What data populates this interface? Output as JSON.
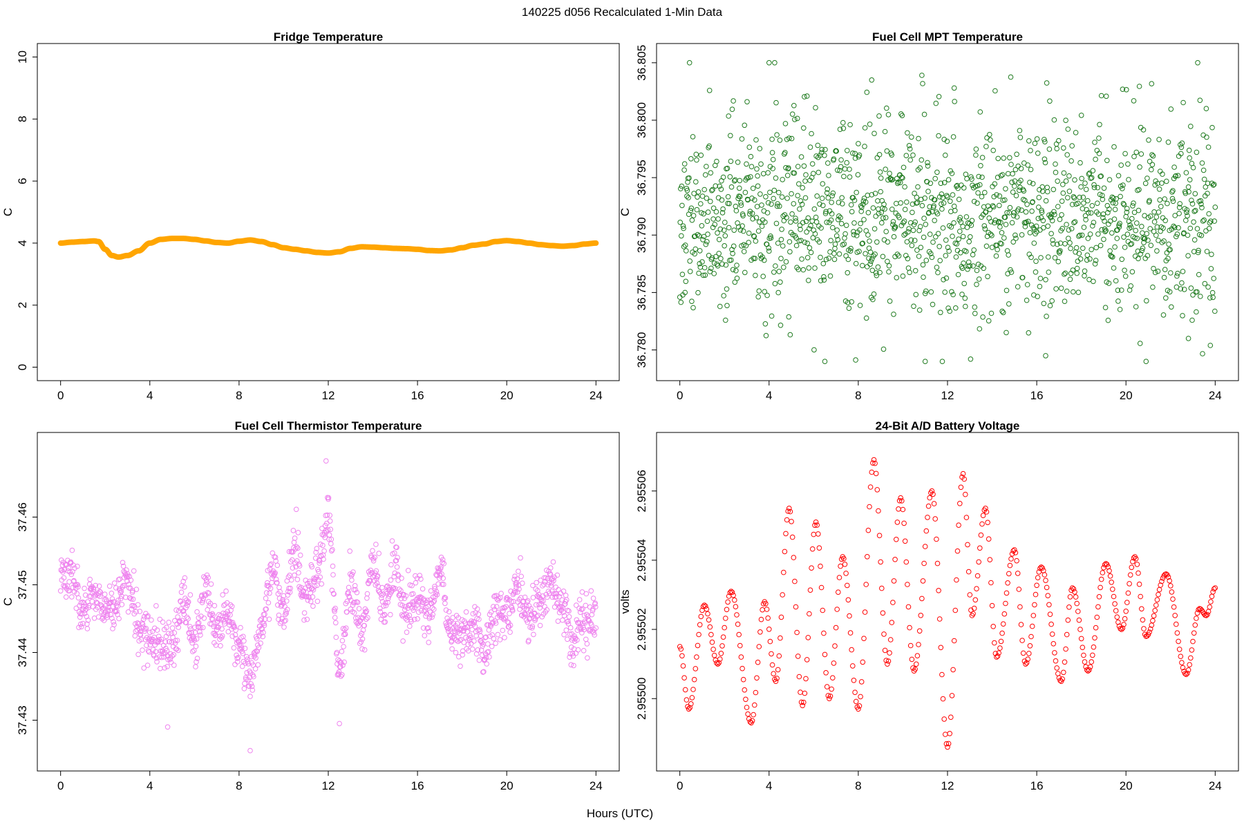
{
  "figure": {
    "title": "140225    d056    Recalculated 1-Min Data",
    "xlabel": "Hours (UTC)"
  },
  "chart_data": [
    {
      "type": "line",
      "title": "Fridge Temperature",
      "xlabel": "",
      "ylabel": "C",
      "color": "#ffa500",
      "xlim": [
        0,
        24
      ],
      "ylim": [
        0,
        10
      ],
      "xticks": [
        0,
        4,
        8,
        12,
        16,
        20,
        24
      ],
      "yticks": [
        0,
        2,
        4,
        6,
        8,
        10
      ],
      "ytick_labels": [
        "0",
        "2",
        "4",
        "6",
        "8",
        "10"
      ],
      "x": [
        0.0,
        0.5,
        1.0,
        1.5,
        1.7,
        2.0,
        2.3,
        2.6,
        3.0,
        3.5,
        4.0,
        4.5,
        5.0,
        5.5,
        6.0,
        6.5,
        7.0,
        7.5,
        8.0,
        8.5,
        9.0,
        9.5,
        10.0,
        10.5,
        11.0,
        11.5,
        12.0,
        12.5,
        13.0,
        13.5,
        14.0,
        14.5,
        15.0,
        15.5,
        16.0,
        16.5,
        17.0,
        17.5,
        18.0,
        18.5,
        19.0,
        19.5,
        20.0,
        20.5,
        21.0,
        21.5,
        22.0,
        22.5,
        23.0,
        23.5,
        24.0
      ],
      "y": [
        4.0,
        4.03,
        4.05,
        4.07,
        4.05,
        3.8,
        3.6,
        3.55,
        3.6,
        3.75,
        4.0,
        4.12,
        4.15,
        4.15,
        4.12,
        4.07,
        4.02,
        4.0,
        4.06,
        4.1,
        4.05,
        3.95,
        3.85,
        3.8,
        3.75,
        3.7,
        3.68,
        3.72,
        3.83,
        3.88,
        3.87,
        3.85,
        3.83,
        3.82,
        3.8,
        3.76,
        3.75,
        3.78,
        3.85,
        3.93,
        3.97,
        4.05,
        4.08,
        4.05,
        4.0,
        3.95,
        3.92,
        3.9,
        3.92,
        3.97,
        4.0
      ]
    },
    {
      "type": "scatter",
      "title": "Fuel Cell MPT Temperature",
      "xlabel": "",
      "ylabel": "C",
      "color": "#1e7a1e",
      "xlim": [
        0,
        24
      ],
      "ylim": [
        36.7785,
        36.8055
      ],
      "xticks": [
        0,
        4,
        8,
        12,
        16,
        20,
        24
      ],
      "yticks": [
        36.78,
        36.785,
        36.79,
        36.795,
        36.8,
        36.805
      ],
      "ytick_labels": [
        "36.780",
        "36.785",
        "36.790",
        "36.795",
        "36.800",
        "36.805"
      ],
      "generator": {
        "kind": "noise",
        "n": 1441,
        "mean": 36.7915,
        "sd": 0.0042,
        "clip": [
          36.779,
          36.805
        ],
        "seed": 2
      },
      "y_extremes": [
        {
          "x": 4.0,
          "y": 36.805
        },
        {
          "x": 8.6,
          "y": 36.8035
        },
        {
          "x": 12.3,
          "y": 36.8028
        },
        {
          "x": 11.0,
          "y": 36.779
        },
        {
          "x": 16.4,
          "y": 36.7795
        },
        {
          "x": 22.8,
          "y": 36.781
        }
      ]
    },
    {
      "type": "scatter",
      "title": "Fuel Cell Thermistor Temperature",
      "xlabel": "",
      "ylabel": "C",
      "color": "#ee82ee",
      "xlim": [
        0,
        24
      ],
      "ylim": [
        37.4245,
        37.4705
      ],
      "xticks": [
        0,
        4,
        8,
        12,
        16,
        20,
        24
      ],
      "yticks": [
        37.43,
        37.44,
        37.45,
        37.46
      ],
      "ytick_labels": [
        "37.43",
        "37.44",
        "37.45",
        "37.46"
      ],
      "generator": {
        "kind": "oscillating-noise",
        "n": 1441,
        "noise_sd": 0.0018,
        "seed": 3
      },
      "trend": {
        "x": [
          0.0,
          0.5,
          1.0,
          1.5,
          2.0,
          2.5,
          3.0,
          3.5,
          4.0,
          4.5,
          5.0,
          5.5,
          6.0,
          6.5,
          7.0,
          7.5,
          8.0,
          8.5,
          9.0,
          9.5,
          10.0,
          10.5,
          11.0,
          11.5,
          12.0,
          12.5,
          13.0,
          13.5,
          14.0,
          14.5,
          15.0,
          15.5,
          16.0,
          16.5,
          17.0,
          17.5,
          18.0,
          18.5,
          19.0,
          19.5,
          20.0,
          20.5,
          21.0,
          21.5,
          22.0,
          22.5,
          23.0,
          23.5,
          24.0
        ],
        "y": [
          37.452,
          37.452,
          37.445,
          37.449,
          37.446,
          37.447,
          37.451,
          37.444,
          37.442,
          37.441,
          37.44,
          37.448,
          37.441,
          37.449,
          37.443,
          37.446,
          37.44,
          37.436,
          37.444,
          37.452,
          37.446,
          37.455,
          37.447,
          37.452,
          37.46,
          37.437,
          37.449,
          37.444,
          37.453,
          37.447,
          37.452,
          37.446,
          37.448,
          37.445,
          37.452,
          37.443,
          37.443,
          37.444,
          37.44,
          37.446,
          37.445,
          37.45,
          37.445,
          37.448,
          37.45,
          37.446,
          37.442,
          37.445,
          37.445
        ]
      },
      "y_extremes": [
        {
          "x": 8.5,
          "y": 37.4255
        },
        {
          "x": 11.9,
          "y": 37.4683
        },
        {
          "x": 4.8,
          "y": 37.429
        },
        {
          "x": 12.5,
          "y": 37.4295
        }
      ]
    },
    {
      "type": "scatter",
      "title": "24-Bit A/D Battery Voltage",
      "xlabel": "",
      "ylabel": "volts",
      "color": "#ff0000",
      "xlim": [
        0,
        24
      ],
      "ylim": [
        2.954983,
        2.955073
      ],
      "xticks": [
        0,
        4,
        8,
        12,
        16,
        20,
        24
      ],
      "yticks": [
        2.955,
        2.95502,
        2.95504,
        2.95506
      ],
      "ytick_labels": [
        "2.95500",
        "2.95502",
        "2.95504",
        "2.95506"
      ],
      "generator": {
        "kind": "interpolated-extrema",
        "n": 1441
      },
      "extrema": {
        "x": [
          0.0,
          0.4,
          1.1,
          1.7,
          2.3,
          3.2,
          3.8,
          4.3,
          4.9,
          5.5,
          6.1,
          6.7,
          7.3,
          8.0,
          8.7,
          9.3,
          9.9,
          10.5,
          11.3,
          12.0,
          12.7,
          13.1,
          13.7,
          14.2,
          15.0,
          15.5,
          16.2,
          17.1,
          17.6,
          18.3,
          19.1,
          19.8,
          20.4,
          20.9,
          21.8,
          22.7,
          23.3,
          23.6,
          24.0
        ],
        "y": [
          2.955015,
          2.954997,
          2.955027,
          2.95501,
          2.955031,
          2.954993,
          2.955028,
          2.955005,
          2.955055,
          2.954998,
          2.955051,
          2.955,
          2.955041,
          2.954997,
          2.955069,
          2.95501,
          2.955058,
          2.955008,
          2.95506,
          2.954986,
          2.955065,
          2.955024,
          2.955055,
          2.955012,
          2.955043,
          2.95501,
          2.955038,
          2.955005,
          2.955032,
          2.955008,
          2.955039,
          2.95502,
          2.955041,
          2.955018,
          2.955036,
          2.955007,
          2.955026,
          2.955024,
          2.955032
        ]
      }
    }
  ]
}
